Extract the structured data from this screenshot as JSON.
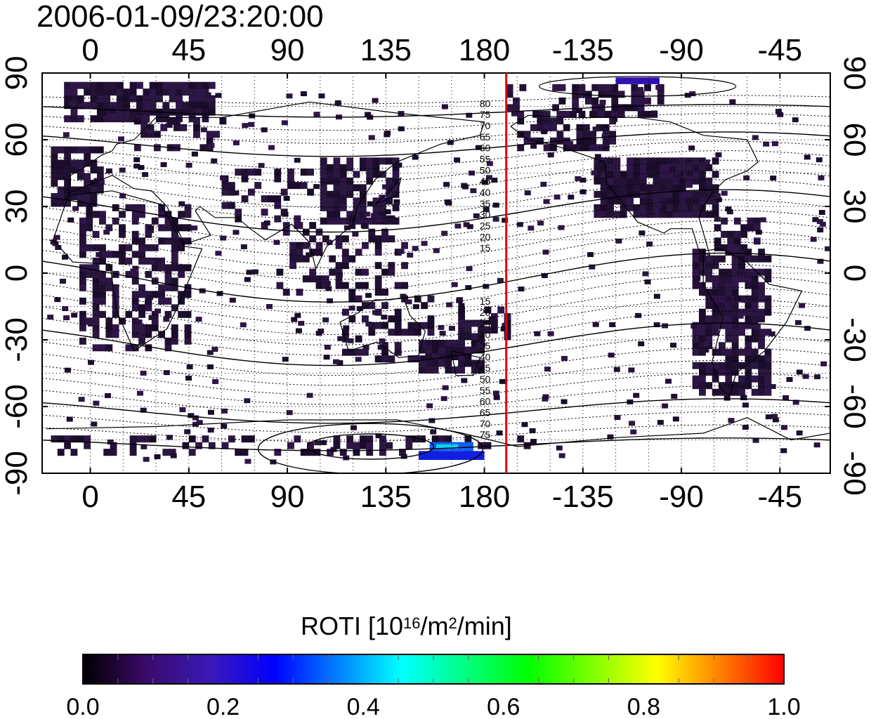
{
  "title": "2006-01-09/23:20:00",
  "map": {
    "lon_ticks": [
      "0",
      "45",
      "90",
      "135",
      "180",
      "-135",
      "-90",
      "-45"
    ],
    "lat_ticks": [
      "90",
      "60",
      "30",
      "0",
      "-30",
      "-60",
      "-90"
    ],
    "lon_range": [
      -22,
      338
    ],
    "lat_range": [
      -90,
      90
    ],
    "terminator_lon": 190,
    "terminator_color": "#e00000",
    "contour_labels_north": [
      "80",
      "75",
      "70",
      "65",
      "60",
      "55",
      "50",
      "45",
      "40",
      "35",
      "30",
      "25",
      "20",
      "15"
    ],
    "contour_labels_south": [
      "15",
      "20",
      "25",
      "30",
      "35",
      "40",
      "45",
      "50",
      "55",
      "60",
      "65",
      "70",
      "75"
    ],
    "grid": "dotted"
  },
  "colorbar": {
    "title_main": "ROTI  [10",
    "title_sup1": "16",
    "title_mid": "/m",
    "title_sup2": "2",
    "title_end": "/min]",
    "ticks": [
      "0.0",
      "0.2",
      "0.4",
      "0.6",
      "0.8",
      "1.0"
    ],
    "range": [
      0.0,
      1.0
    ],
    "colors": [
      "#000000",
      "#3a0a6a",
      "#3a1ab8",
      "#0000ff",
      "#0080ff",
      "#00ffff",
      "#00ff80",
      "#00ff00",
      "#80ff00",
      "#ffff00",
      "#ff8000",
      "#ff0000"
    ]
  }
}
